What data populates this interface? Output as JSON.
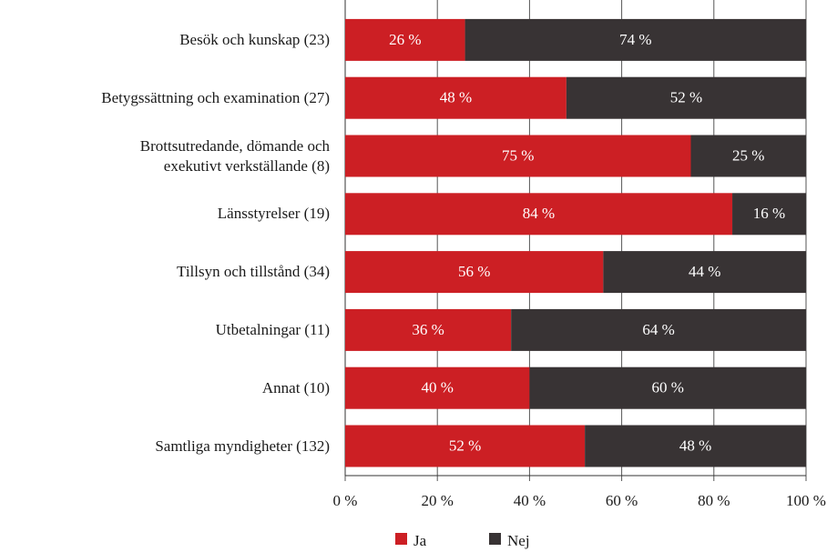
{
  "chart_data": {
    "type": "stacked_barh",
    "categories": [
      "Besök och kunskap (23)",
      "Betygssättning och examination (27)",
      "Brottsutredande, dömande och\nexekutivt verkställande (8)",
      "Länsstyrelser (19)",
      "Tillsyn och tillstånd (34)",
      "Utbetalningar (11)",
      "Annat (10)",
      "Samtliga myndigheter (132)"
    ],
    "series": [
      {
        "name": "Ja",
        "color": "#cc1f24",
        "values": [
          26,
          48,
          75,
          84,
          56,
          36,
          40,
          52
        ],
        "value_labels": [
          "26 %",
          "48 %",
          "75 %",
          "84 %",
          "56 %",
          "36 %",
          "40 %",
          "52 %"
        ]
      },
      {
        "name": "Nej",
        "color": "#383334",
        "values": [
          74,
          52,
          25,
          16,
          44,
          64,
          60,
          48
        ],
        "value_labels": [
          "74 %",
          "52 %",
          "25 %",
          "16 %",
          "44 %",
          "64 %",
          "60 %",
          "48 %"
        ]
      }
    ],
    "xlim": [
      0,
      100
    ],
    "xticks": [
      {
        "value": 0,
        "label": "0 %"
      },
      {
        "value": 20,
        "label": "20 %"
      },
      {
        "value": 40,
        "label": "40 %"
      },
      {
        "value": 60,
        "label": "60 %"
      },
      {
        "value": 80,
        "label": "80 %"
      },
      {
        "value": 100,
        "label": "100 %"
      }
    ],
    "grid": true,
    "legend": "bottom"
  }
}
